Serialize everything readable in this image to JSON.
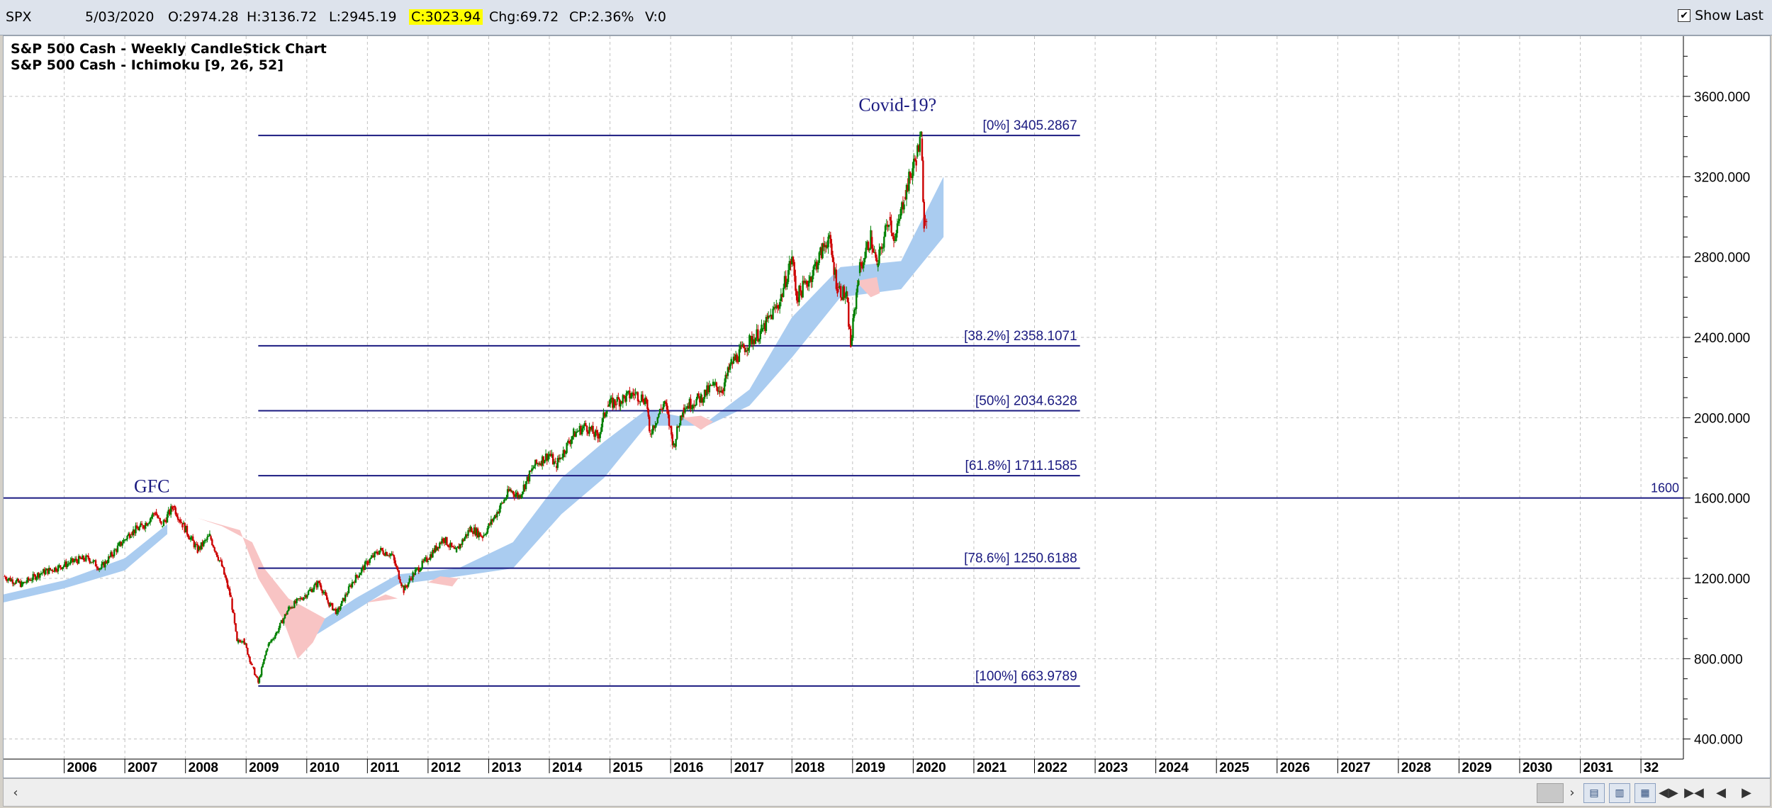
{
  "toolbar": {
    "symbol": "SPX",
    "date": "5/03/2020",
    "open": "O:2974.28",
    "high": "H:3136.72",
    "low": "L:2945.19",
    "close": "C:3023.94",
    "change": "Chg:69.72",
    "change_pct": "CP:2.36%",
    "volume": "V:0",
    "show_last_label": "Show Last",
    "show_last_checked": true
  },
  "titles": {
    "line1": "S&P 500 Cash - Weekly CandleStick Chart",
    "line2": "S&P 500 Cash - Ichimoku [9, 26, 52]"
  },
  "icons": {
    "scroll_left": "scroll-left-icon",
    "scroll_right": "scroll-right-icon",
    "nav": [
      "zoom-in-icon",
      "zoom-out-icon",
      "fit-icon",
      "scroll-start-icon",
      "scroll-end-icon",
      "step-left-icon",
      "step-right-icon"
    ]
  },
  "chart_data": {
    "type": "candlestick",
    "xlabel": "",
    "ylabel": "",
    "x_ticks": [
      "2006",
      "2007",
      "2008",
      "2009",
      "2010",
      "2011",
      "2012",
      "2013",
      "2014",
      "2015",
      "2016",
      "2017",
      "2018",
      "2019",
      "2020",
      "2021",
      "2022",
      "2023",
      "2024",
      "2025",
      "2026",
      "2027",
      "2028",
      "2029",
      "2030",
      "2031",
      "32"
    ],
    "y_ticks": [
      "3600.000",
      "3200.000",
      "2800.000",
      "2400.000",
      "2000.000",
      "1600.000",
      "1200.000",
      "800.000",
      "400.000"
    ],
    "ylim": [
      300,
      3900
    ],
    "xlim": [
      2005.0,
      2032.7
    ],
    "grid": true,
    "colors": {
      "up": "#008000",
      "down": "#cc0000",
      "cloud_bull": "#aaccf0",
      "cloud_bear": "#f8c4c4",
      "fib_line": "#1a1a80",
      "annotation": "#1a1a80"
    },
    "series": [
      {
        "name": "price",
        "points": [
          [
            2005.0,
            1210
          ],
          [
            2005.3,
            1170
          ],
          [
            2005.6,
            1225
          ],
          [
            2005.9,
            1255
          ],
          [
            2006.2,
            1290
          ],
          [
            2006.4,
            1300
          ],
          [
            2006.6,
            1250
          ],
          [
            2006.9,
            1360
          ],
          [
            2007.1,
            1430
          ],
          [
            2007.3,
            1460
          ],
          [
            2007.5,
            1530
          ],
          [
            2007.6,
            1460
          ],
          [
            2007.8,
            1560
          ],
          [
            2007.95,
            1470
          ],
          [
            2008.2,
            1340
          ],
          [
            2008.4,
            1410
          ],
          [
            2008.6,
            1260
          ],
          [
            2008.75,
            1100
          ],
          [
            2008.85,
            880
          ],
          [
            2008.95,
            900
          ],
          [
            2009.1,
            760
          ],
          [
            2009.2,
            680
          ],
          [
            2009.35,
            860
          ],
          [
            2009.5,
            930
          ],
          [
            2009.7,
            1050
          ],
          [
            2009.95,
            1110
          ],
          [
            2010.2,
            1180
          ],
          [
            2010.35,
            1080
          ],
          [
            2010.5,
            1030
          ],
          [
            2010.75,
            1180
          ],
          [
            2011.0,
            1280
          ],
          [
            2011.2,
            1340
          ],
          [
            2011.4,
            1320
          ],
          [
            2011.6,
            1140
          ],
          [
            2011.75,
            1220
          ],
          [
            2012.0,
            1300
          ],
          [
            2012.25,
            1400
          ],
          [
            2012.45,
            1330
          ],
          [
            2012.7,
            1450
          ],
          [
            2012.9,
            1410
          ],
          [
            2013.1,
            1510
          ],
          [
            2013.35,
            1640
          ],
          [
            2013.5,
            1610
          ],
          [
            2013.75,
            1760
          ],
          [
            2014.0,
            1820
          ],
          [
            2014.1,
            1760
          ],
          [
            2014.4,
            1920
          ],
          [
            2014.6,
            1960
          ],
          [
            2014.8,
            1900
          ],
          [
            2014.95,
            2060
          ],
          [
            2015.1,
            2080
          ],
          [
            2015.4,
            2120
          ],
          [
            2015.6,
            2090
          ],
          [
            2015.65,
            1920
          ],
          [
            2015.9,
            2080
          ],
          [
            2016.05,
            1860
          ],
          [
            2016.2,
            2050
          ],
          [
            2016.5,
            2100
          ],
          [
            2016.7,
            2160
          ],
          [
            2016.85,
            2140
          ],
          [
            2017.0,
            2270
          ],
          [
            2017.3,
            2380
          ],
          [
            2017.5,
            2430
          ],
          [
            2017.8,
            2580
          ],
          [
            2018.0,
            2800
          ],
          [
            2018.08,
            2600
          ],
          [
            2018.3,
            2700
          ],
          [
            2018.6,
            2900
          ],
          [
            2018.75,
            2650
          ],
          [
            2018.9,
            2600
          ],
          [
            2018.97,
            2360
          ],
          [
            2019.1,
            2720
          ],
          [
            2019.3,
            2900
          ],
          [
            2019.4,
            2750
          ],
          [
            2019.6,
            3000
          ],
          [
            2019.7,
            2880
          ],
          [
            2019.85,
            3100
          ],
          [
            2020.05,
            3300
          ],
          [
            2020.13,
            3390
          ],
          [
            2020.18,
            2980
          ],
          [
            2020.22,
            3020
          ]
        ]
      },
      {
        "name": "cloud_bull_upper",
        "points": [
          [
            2005.0,
            1120
          ],
          [
            2006.0,
            1190
          ],
          [
            2007.0,
            1300
          ],
          [
            2007.7,
            1470
          ],
          [
            2010.0,
            940
          ],
          [
            2010.8,
            1100
          ],
          [
            2011.5,
            1220
          ],
          [
            2012.5,
            1250
          ],
          [
            2013.4,
            1380
          ],
          [
            2014.2,
            1700
          ],
          [
            2014.9,
            1880
          ],
          [
            2015.6,
            2040
          ],
          [
            2016.6,
            1980
          ],
          [
            2017.3,
            2140
          ],
          [
            2018.0,
            2500
          ],
          [
            2018.8,
            2750
          ],
          [
            2019.8,
            2780
          ],
          [
            2020.5,
            3200
          ]
        ]
      },
      {
        "name": "cloud_bull_lower",
        "points": [
          [
            2005.0,
            1080
          ],
          [
            2006.0,
            1150
          ],
          [
            2007.0,
            1240
          ],
          [
            2007.7,
            1420
          ],
          [
            2010.0,
            890
          ],
          [
            2010.8,
            1040
          ],
          [
            2011.5,
            1170
          ],
          [
            2012.5,
            1210
          ],
          [
            2013.4,
            1250
          ],
          [
            2014.2,
            1520
          ],
          [
            2014.9,
            1700
          ],
          [
            2015.6,
            1960
          ],
          [
            2016.6,
            1960
          ],
          [
            2017.3,
            2060
          ],
          [
            2018.0,
            2300
          ],
          [
            2018.8,
            2600
          ],
          [
            2019.8,
            2640
          ],
          [
            2020.5,
            2900
          ]
        ]
      },
      {
        "name": "cloud_bear",
        "points": [
          [
            2008.3,
            1480
          ],
          [
            2009.0,
            1420
          ],
          [
            2009.4,
            1100
          ],
          [
            2009.8,
            820
          ],
          [
            2010.3,
            900
          ],
          [
            2010.8,
            1080
          ],
          [
            2012.1,
            1200
          ],
          [
            2016.2,
            2000
          ],
          [
            2016.5,
            1950
          ],
          [
            2019.1,
            2640
          ],
          [
            2019.4,
            2600
          ]
        ]
      }
    ],
    "annotations": {
      "covid_label": "Covid-19?",
      "gfc_label": "GFC",
      "horizontal_line_label": "1600",
      "horizontal_line_value": 1600,
      "fib_levels": [
        {
          "label": "[0%] 3405.2867",
          "value": 3405.2867
        },
        {
          "label": "[38.2%] 2358.1071",
          "value": 2358.1071
        },
        {
          "label": "[50%] 2034.6328",
          "value": 2034.6328
        },
        {
          "label": "[61.8%] 1711.1585",
          "value": 1711.1585
        },
        {
          "label": "[78.6%] 1250.6188",
          "value": 1250.6188
        },
        {
          "label": "[100%] 663.9789",
          "value": 663.9789
        }
      ],
      "fib_start_year": 2009.2,
      "fib_end_year": 2022.75
    }
  }
}
